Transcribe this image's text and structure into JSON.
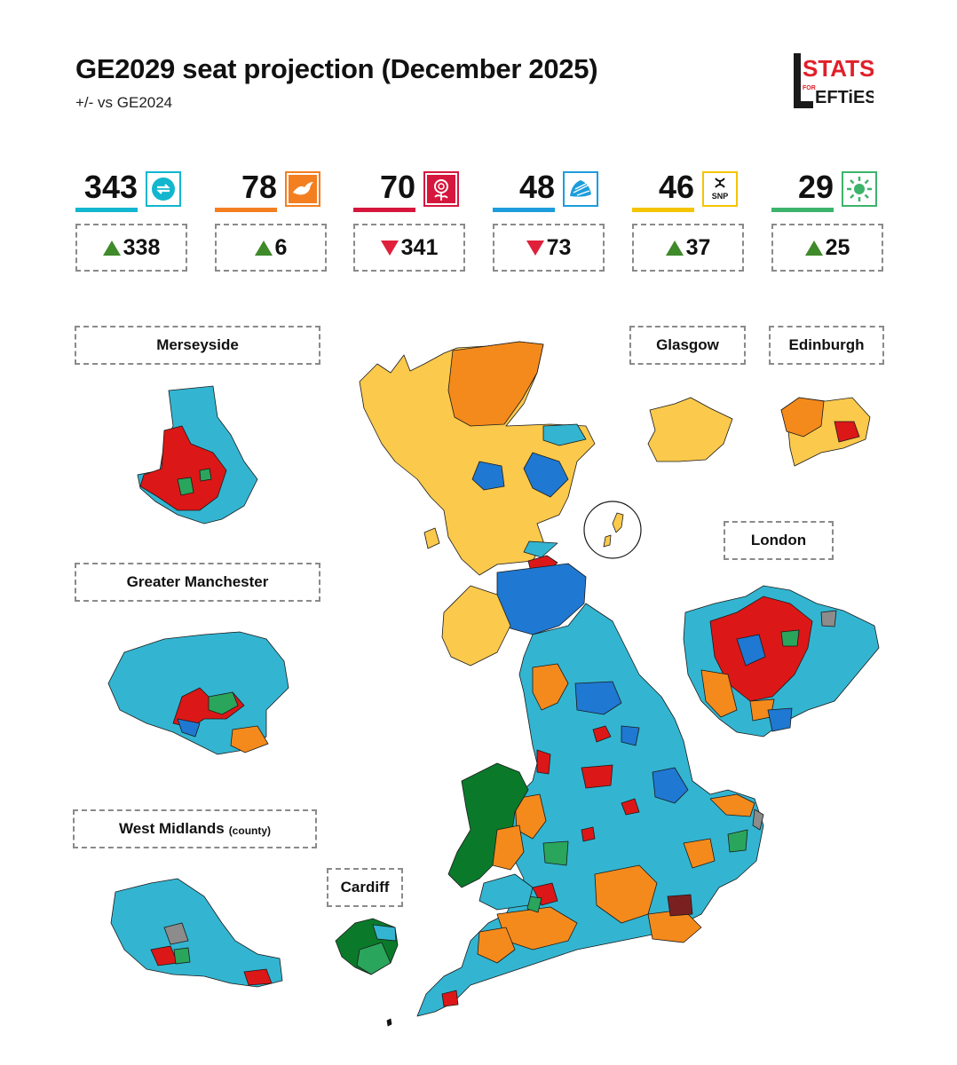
{
  "header": {
    "title": "GE2029 seat projection (December 2025)",
    "subtitle": "+/- vs GE2024",
    "logo_text_top": "STATS",
    "logo_text_for": "FOR",
    "logo_text_bottom": "EFTiES"
  },
  "parties": [
    {
      "id": "reform",
      "seats": "343",
      "change": "338",
      "direction": "up",
      "color": "#12b6cf",
      "emblem": "reform-logo-icon",
      "emblem_text": "REFORM UK"
    },
    {
      "id": "libdem",
      "seats": "78",
      "change": "6",
      "direction": "up",
      "color": "#f47f20",
      "emblem": "bird-icon"
    },
    {
      "id": "labour",
      "seats": "70",
      "change": "341",
      "direction": "down",
      "color": "#d6173d",
      "emblem": "rose-icon"
    },
    {
      "id": "conservative",
      "seats": "48",
      "change": "73",
      "direction": "down",
      "color": "#1d9ddc",
      "emblem": "tree-icon"
    },
    {
      "id": "snp",
      "seats": "46",
      "change": "37",
      "direction": "up",
      "color": "#f5c400",
      "emblem": "snp-icon",
      "emblem_text": "SNP"
    },
    {
      "id": "green",
      "seats": "29",
      "change": "25",
      "direction": "up",
      "color": "#3db36b",
      "emblem": "green-globe-icon"
    }
  ],
  "insets": {
    "merseyside": "Merseyside",
    "greater_manchester": "Greater Manchester",
    "west_midlands": "West Midlands",
    "west_midlands_note": "(county)",
    "cardiff": "Cardiff",
    "glasgow": "Glasgow",
    "edinburgh": "Edinburgh",
    "london": "London"
  },
  "map_colors": {
    "reform": "#33b5d1",
    "libdem": "#f48a1c",
    "labour": "#dc1717",
    "conservative": "#1f78d1",
    "snp": "#fbc94c",
    "green": "#2aa55c",
    "plaid": "#0a7a2a",
    "other": "#8c8c8c"
  }
}
